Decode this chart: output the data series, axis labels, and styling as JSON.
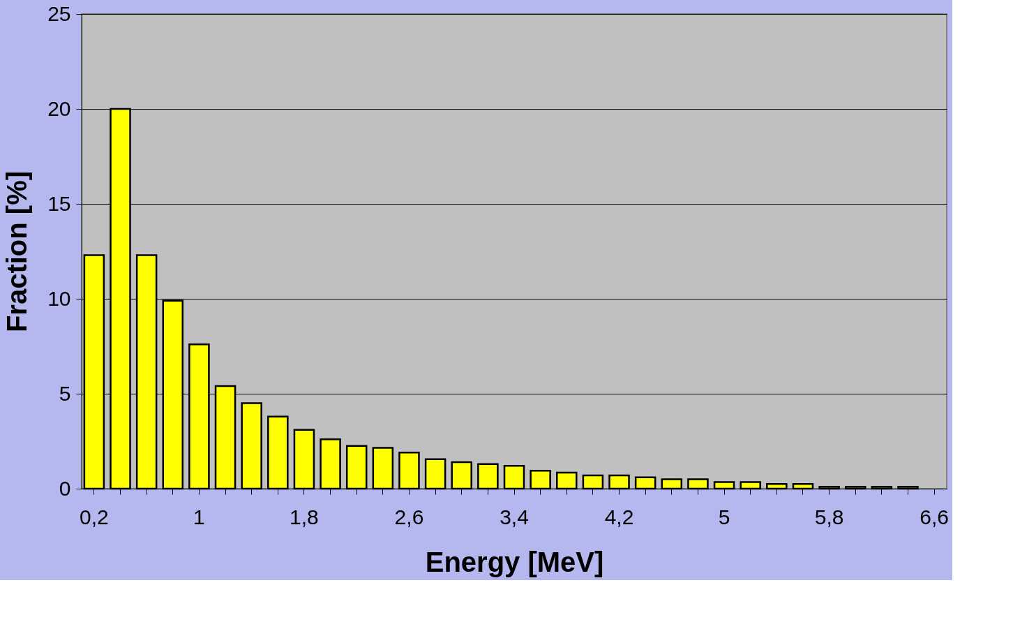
{
  "chart_data": {
    "type": "bar",
    "xlabel": "Energy [MeV]",
    "ylabel": "Fraction [%]",
    "categories": [
      "0,2",
      null,
      null,
      null,
      "1",
      null,
      null,
      null,
      "1,8",
      null,
      null,
      null,
      "2,6",
      null,
      null,
      null,
      "3,4",
      null,
      null,
      null,
      "4,2",
      null,
      null,
      null,
      "5",
      null,
      null,
      null,
      "5,8",
      null,
      null,
      null,
      "6,6"
    ],
    "values": [
      12.3,
      20,
      12.3,
      9.9,
      7.6,
      5.4,
      4.5,
      3.8,
      3.1,
      2.6,
      2.25,
      2.15,
      1.9,
      1.55,
      1.4,
      1.3,
      1.2,
      0.95,
      0.85,
      0.7,
      0.7,
      0.6,
      0.5,
      0.5,
      0.35,
      0.35,
      0.25,
      0.25,
      0.1,
      0.1,
      0.1,
      0.1,
      null
    ],
    "color": "#ffff00",
    "ylim": [
      0,
      25
    ],
    "yticks": [
      0,
      5,
      10,
      15,
      20,
      25
    ],
    "grid": "y"
  }
}
